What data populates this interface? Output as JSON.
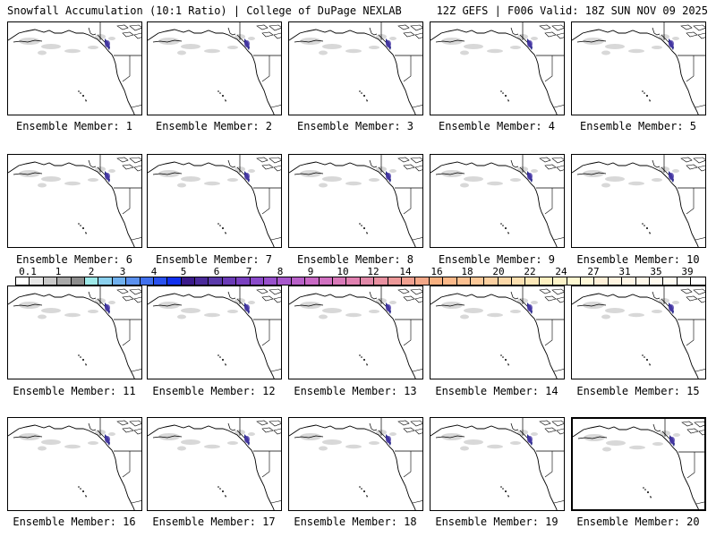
{
  "header": {
    "left": "Snowfall Accumulation (10:1 Ratio) | College of DuPage NEXLAB",
    "right": "12Z GEFS | F006 Valid: 18Z SUN NOV 09 2025"
  },
  "members": [
    {
      "label": "Ensemble Member: 1"
    },
    {
      "label": "Ensemble Member: 2"
    },
    {
      "label": "Ensemble Member: 3"
    },
    {
      "label": "Ensemble Member: 4"
    },
    {
      "label": "Ensemble Member: 5"
    },
    {
      "label": "Ensemble Member: 6"
    },
    {
      "label": "Ensemble Member: 7"
    },
    {
      "label": "Ensemble Member: 8"
    },
    {
      "label": "Ensemble Member: 9"
    },
    {
      "label": "Ensemble Member: 10"
    },
    {
      "label": "Ensemble Member: 11"
    },
    {
      "label": "Ensemble Member: 12"
    },
    {
      "label": "Ensemble Member: 13"
    },
    {
      "label": "Ensemble Member: 14"
    },
    {
      "label": "Ensemble Member: 15"
    },
    {
      "label": "Ensemble Member: 16"
    },
    {
      "label": "Ensemble Member: 17"
    },
    {
      "label": "Ensemble Member: 18"
    },
    {
      "label": "Ensemble Member: 19"
    },
    {
      "label": "Ensemble Member: 20"
    }
  ],
  "legend": {
    "ticks": [
      "0.1",
      "1",
      "2",
      "3",
      "4",
      "5",
      "6",
      "7",
      "8",
      "9",
      "10",
      "12",
      "14",
      "16",
      "18",
      "20",
      "22",
      "24",
      "27",
      "31",
      "35",
      "39"
    ],
    "colors": [
      "#ffffff",
      "#e6e6e6",
      "#c8c8c8",
      "#a8a8a8",
      "#8c8c8c",
      "#9de8e8",
      "#8ad0ee",
      "#6fb0ee",
      "#5a90ee",
      "#4070ee",
      "#2850ee",
      "#1030ee",
      "#3a1a8a",
      "#4a2a9a",
      "#5a3aaa",
      "#6a3ab6",
      "#7a40c0",
      "#8a4aca",
      "#9850cc",
      "#a858cc",
      "#b860c8",
      "#c868c4",
      "#d070c0",
      "#d878b8",
      "#e080b0",
      "#e088a8",
      "#e890a0",
      "#ec9898",
      "#f0a090",
      "#f4a888",
      "#f8b080",
      "#fbb888",
      "#fcc090",
      "#fcc898",
      "#fcd0a0",
      "#fcd8a8",
      "#fde0b0",
      "#fde8b8",
      "#fef0c0",
      "#fef4c8",
      "#fef8d0",
      "#fff8d8",
      "#fff0d8",
      "#fff4e0",
      "#fff6e6",
      "#fff8ea",
      "#fffaee",
      "#fffcf2",
      "#fffef8",
      "#ffffff"
    ],
    "selected_member": "Ensemble Member: 20"
  }
}
